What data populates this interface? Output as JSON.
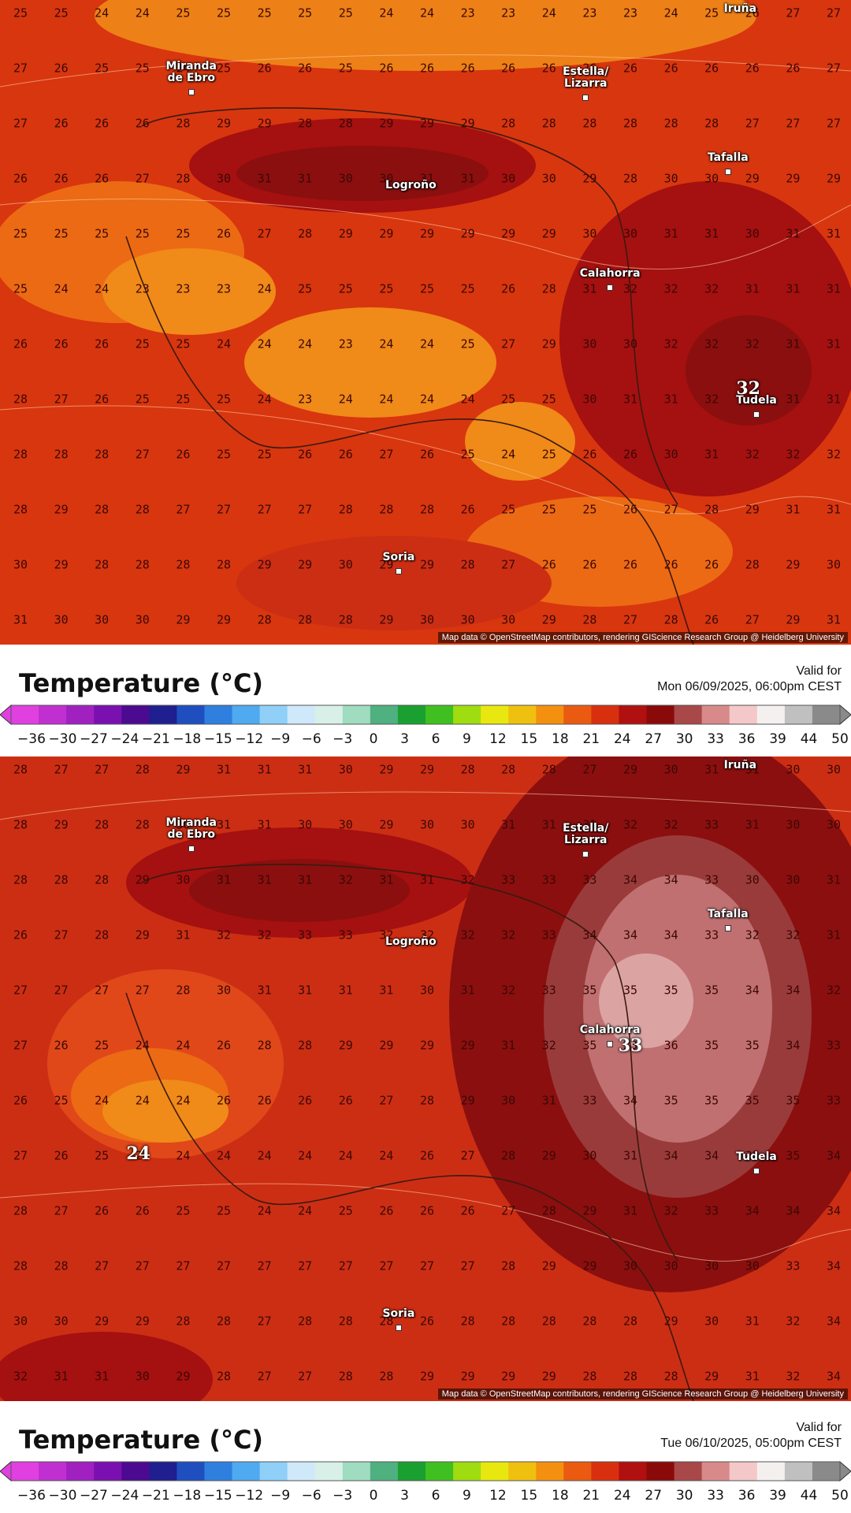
{
  "panels": [
    {
      "id": "map1",
      "grid": [
        [
          "25",
          "25",
          "24",
          "24",
          "25",
          "25",
          "25",
          "25",
          "25",
          "24",
          "24",
          "23",
          "23",
          "24",
          "23",
          "23",
          "24",
          "25",
          "26",
          "27",
          "27"
        ],
        [
          "27",
          "26",
          "25",
          "25",
          "24",
          "25",
          "26",
          "26",
          "25",
          "26",
          "26",
          "26",
          "26",
          "26",
          "26",
          "26",
          "26",
          "26",
          "26",
          "26",
          "27"
        ],
        [
          "27",
          "26",
          "26",
          "26",
          "28",
          "29",
          "29",
          "28",
          "28",
          "29",
          "29",
          "29",
          "28",
          "28",
          "28",
          "28",
          "28",
          "28",
          "27",
          "27",
          "27"
        ],
        [
          "26",
          "26",
          "26",
          "27",
          "28",
          "30",
          "31",
          "31",
          "30",
          "30",
          "31",
          "31",
          "30",
          "30",
          "29",
          "28",
          "30",
          "30",
          "29",
          "29",
          "29"
        ],
        [
          "25",
          "25",
          "25",
          "25",
          "25",
          "26",
          "27",
          "28",
          "29",
          "29",
          "29",
          "29",
          "29",
          "29",
          "30",
          "30",
          "31",
          "31",
          "30",
          "31",
          "31"
        ],
        [
          "25",
          "24",
          "24",
          "23",
          "23",
          "23",
          "24",
          "25",
          "25",
          "25",
          "25",
          "25",
          "26",
          "28",
          "31",
          "32",
          "32",
          "32",
          "31",
          "31",
          "31"
        ],
        [
          "26",
          "26",
          "26",
          "25",
          "25",
          "24",
          "24",
          "24",
          "23",
          "24",
          "24",
          "25",
          "27",
          "29",
          "30",
          "30",
          "32",
          "32",
          "32",
          "31",
          "31"
        ],
        [
          "28",
          "27",
          "26",
          "25",
          "25",
          "25",
          "24",
          "23",
          "24",
          "24",
          "24",
          "24",
          "25",
          "25",
          "30",
          "31",
          "31",
          "32",
          "32",
          "31",
          "31"
        ],
        [
          "28",
          "28",
          "28",
          "27",
          "26",
          "25",
          "25",
          "26",
          "26",
          "27",
          "26",
          "25",
          "24",
          "25",
          "26",
          "26",
          "30",
          "31",
          "32",
          "32",
          "32"
        ],
        [
          "28",
          "29",
          "28",
          "28",
          "27",
          "27",
          "27",
          "27",
          "28",
          "28",
          "28",
          "26",
          "25",
          "25",
          "25",
          "26",
          "27",
          "28",
          "29",
          "31",
          "31"
        ],
        [
          "30",
          "29",
          "28",
          "28",
          "28",
          "28",
          "29",
          "29",
          "30",
          "29",
          "29",
          "28",
          "27",
          "26",
          "26",
          "26",
          "26",
          "26",
          "28",
          "29",
          "30"
        ],
        [
          "31",
          "30",
          "30",
          "30",
          "29",
          "29",
          "28",
          "28",
          "28",
          "29",
          "30",
          "30",
          "30",
          "29",
          "28",
          "27",
          "28",
          "26",
          "27",
          "29",
          "31"
        ]
      ],
      "cities": [
        {
          "name": "Miranda\nde Ebro",
          "col": 4.2,
          "row": 1.0,
          "dot": true
        },
        {
          "name": "Estella/\nLizarra",
          "col": 13.9,
          "row": 1.1,
          "dot": true
        },
        {
          "name": "Iruña",
          "col": 17.7,
          "row": -0.05,
          "dot": false
        },
        {
          "name": "Tafalla",
          "col": 17.4,
          "row": 2.65,
          "dot": true
        },
        {
          "name": "Logroño",
          "col": 9.6,
          "row": 3.15,
          "dot": false
        },
        {
          "name": "Calahorra",
          "col": 14.5,
          "row": 4.75,
          "dot": true
        },
        {
          "name": "Tudela",
          "col": 18.1,
          "row": 7.05,
          "dot": true
        },
        {
          "name": "Soria",
          "col": 9.3,
          "row": 9.9,
          "dot": true
        }
      ],
      "extremes": [
        {
          "value": "32",
          "col": 17.9,
          "row": 6.8
        }
      ],
      "attribution": "Map data © OpenStreetMap contributors, rendering GIScience Research Group @ Heidelberg University"
    },
    {
      "id": "map2",
      "grid": [
        [
          "28",
          "27",
          "27",
          "28",
          "29",
          "31",
          "31",
          "31",
          "30",
          "29",
          "29",
          "28",
          "28",
          "28",
          "27",
          "29",
          "30",
          "31",
          "31",
          "30",
          "30"
        ],
        [
          "28",
          "29",
          "28",
          "28",
          "30",
          "31",
          "31",
          "30",
          "30",
          "29",
          "30",
          "30",
          "31",
          "31",
          "31",
          "32",
          "32",
          "33",
          "31",
          "30",
          "30"
        ],
        [
          "28",
          "28",
          "28",
          "29",
          "30",
          "31",
          "31",
          "31",
          "32",
          "31",
          "31",
          "32",
          "33",
          "33",
          "33",
          "34",
          "34",
          "33",
          "30",
          "30",
          "31"
        ],
        [
          "26",
          "27",
          "28",
          "29",
          "31",
          "32",
          "32",
          "33",
          "33",
          "32",
          "32",
          "32",
          "32",
          "33",
          "34",
          "34",
          "34",
          "33",
          "32",
          "32",
          "31"
        ],
        [
          "27",
          "27",
          "27",
          "27",
          "28",
          "30",
          "31",
          "31",
          "31",
          "31",
          "30",
          "31",
          "32",
          "33",
          "35",
          "35",
          "35",
          "35",
          "34",
          "34",
          "32"
        ],
        [
          "27",
          "26",
          "25",
          "24",
          "24",
          "26",
          "28",
          "28",
          "29",
          "29",
          "29",
          "29",
          "31",
          "32",
          "35",
          "33",
          "36",
          "35",
          "35",
          "34",
          "33"
        ],
        [
          "26",
          "25",
          "24",
          "24",
          "24",
          "26",
          "26",
          "26",
          "26",
          "27",
          "28",
          "29",
          "30",
          "31",
          "33",
          "34",
          "35",
          "35",
          "35",
          "35",
          "33"
        ],
        [
          "27",
          "26",
          "25",
          "24",
          "24",
          "24",
          "24",
          "24",
          "24",
          "24",
          "26",
          "27",
          "28",
          "29",
          "30",
          "31",
          "34",
          "34",
          "35",
          "35",
          "34"
        ],
        [
          "28",
          "27",
          "26",
          "26",
          "25",
          "25",
          "24",
          "24",
          "25",
          "26",
          "26",
          "26",
          "27",
          "28",
          "29",
          "31",
          "32",
          "33",
          "34",
          "34",
          "34"
        ],
        [
          "28",
          "28",
          "27",
          "27",
          "27",
          "27",
          "27",
          "27",
          "27",
          "27",
          "27",
          "27",
          "28",
          "29",
          "29",
          "30",
          "30",
          "30",
          "30",
          "33",
          "34"
        ],
        [
          "30",
          "30",
          "29",
          "29",
          "28",
          "28",
          "27",
          "28",
          "28",
          "28",
          "26",
          "28",
          "28",
          "28",
          "28",
          "28",
          "29",
          "30",
          "31",
          "32",
          "34"
        ],
        [
          "32",
          "31",
          "31",
          "30",
          "29",
          "28",
          "27",
          "27",
          "28",
          "28",
          "29",
          "29",
          "29",
          "29",
          "28",
          "28",
          "28",
          "29",
          "31",
          "32",
          "34"
        ]
      ],
      "cities": [
        {
          "name": "Miranda\nde Ebro",
          "col": 4.2,
          "row": 1.0,
          "dot": true
        },
        {
          "name": "Estella/\nLizarra",
          "col": 13.9,
          "row": 1.1,
          "dot": true
        },
        {
          "name": "Iruña",
          "col": 17.7,
          "row": -0.05,
          "dot": false
        },
        {
          "name": "Tafalla",
          "col": 17.4,
          "row": 2.65,
          "dot": true
        },
        {
          "name": "Logroño",
          "col": 9.6,
          "row": 3.15,
          "dot": false
        },
        {
          "name": "Calahorra",
          "col": 14.5,
          "row": 4.75,
          "dot": true
        },
        {
          "name": "Tudela",
          "col": 18.1,
          "row": 7.05,
          "dot": true
        },
        {
          "name": "Soria",
          "col": 9.3,
          "row": 9.9,
          "dot": true
        }
      ],
      "extremes": [
        {
          "value": "33",
          "col": 15.0,
          "row": 5.0
        },
        {
          "value": "24",
          "col": 2.9,
          "row": 6.95
        }
      ],
      "attribution": "Map data © OpenStreetMap contributors, rendering GIScience Research Group @ Heidelberg University"
    }
  ],
  "legends": [
    {
      "title": "Temperature (°C)",
      "valid_label": "Valid for",
      "valid_time": "Mon 06/09/2025, 06:00pm CEST"
    },
    {
      "title": "Temperature (°C)",
      "valid_label": "Valid for",
      "valid_time": "Tue 06/10/2025, 05:00pm CEST"
    }
  ],
  "colorbar_ticks": [
    "-36",
    "-30",
    "-27",
    "-24",
    "-21",
    "-18",
    "-15",
    "-12",
    "-9",
    "-6",
    "-3",
    "0",
    "3",
    "6",
    "9",
    "12",
    "15",
    "18",
    "21",
    "24",
    "27",
    "30",
    "33",
    "36",
    "39",
    "44",
    "50"
  ],
  "colorbar_colors": [
    "#e040e0",
    "#c030d0",
    "#a020c0",
    "#7a10b0",
    "#4b0a8f",
    "#1f1f8f",
    "#1f4fbf",
    "#2f7fdf",
    "#4faaf0",
    "#8fcff8",
    "#cfe8fa",
    "#d8f0e8",
    "#9fdcc0",
    "#4fb080",
    "#1aa030",
    "#3fc020",
    "#9fdc10",
    "#e8e810",
    "#f0c010",
    "#f49010",
    "#ea5a10",
    "#d8300f",
    "#b01010",
    "#8a0a0a",
    "#a84848",
    "#d88a8a",
    "#f4c8c8",
    "#f4f0f0",
    "#c0c0c0",
    "#8a8a8a"
  ],
  "shading_colors": {
    "t23": "#f08a18",
    "t25": "#ec6a14",
    "t27": "#e0481a",
    "t29": "#cc2e14",
    "t31": "#a51010",
    "t33": "#8b0f0f",
    "t34": "#9a3b3b",
    "t35": "#c07070",
    "t36": "#dca3a3"
  }
}
